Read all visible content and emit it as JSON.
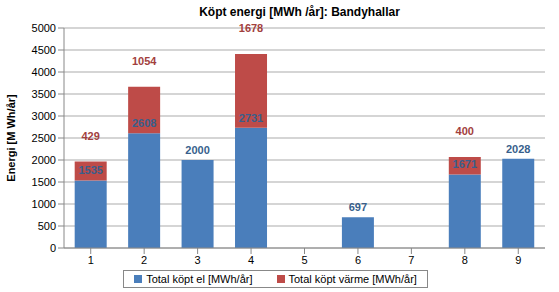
{
  "chart_data": {
    "type": "bar",
    "title": "Köpt energi [MWh /år]: Bandyhallar",
    "ylabel": "Energi [M Wh/år]",
    "categories": [
      "1",
      "2",
      "3",
      "4",
      "5",
      "6",
      "7",
      "8",
      "9"
    ],
    "series": [
      {
        "name": "Total köpt el [MWh/år]",
        "color": "#4a7ebb",
        "values": [
          1535,
          2608,
          2000,
          2731,
          null,
          697,
          null,
          1671,
          2028
        ]
      },
      {
        "name": "Total köpt värme [MWh/år]",
        "color": "#be4b48",
        "values": [
          429,
          1054,
          0,
          1678,
          null,
          null,
          null,
          400,
          0
        ]
      }
    ],
    "ylim": [
      0,
      5000
    ],
    "yticks": [
      0,
      500,
      1000,
      1500,
      2000,
      2500,
      3000,
      3500,
      4000,
      4500,
      5000
    ],
    "grid": true,
    "stacked": true,
    "data_labels": true,
    "legend": "bottom"
  }
}
